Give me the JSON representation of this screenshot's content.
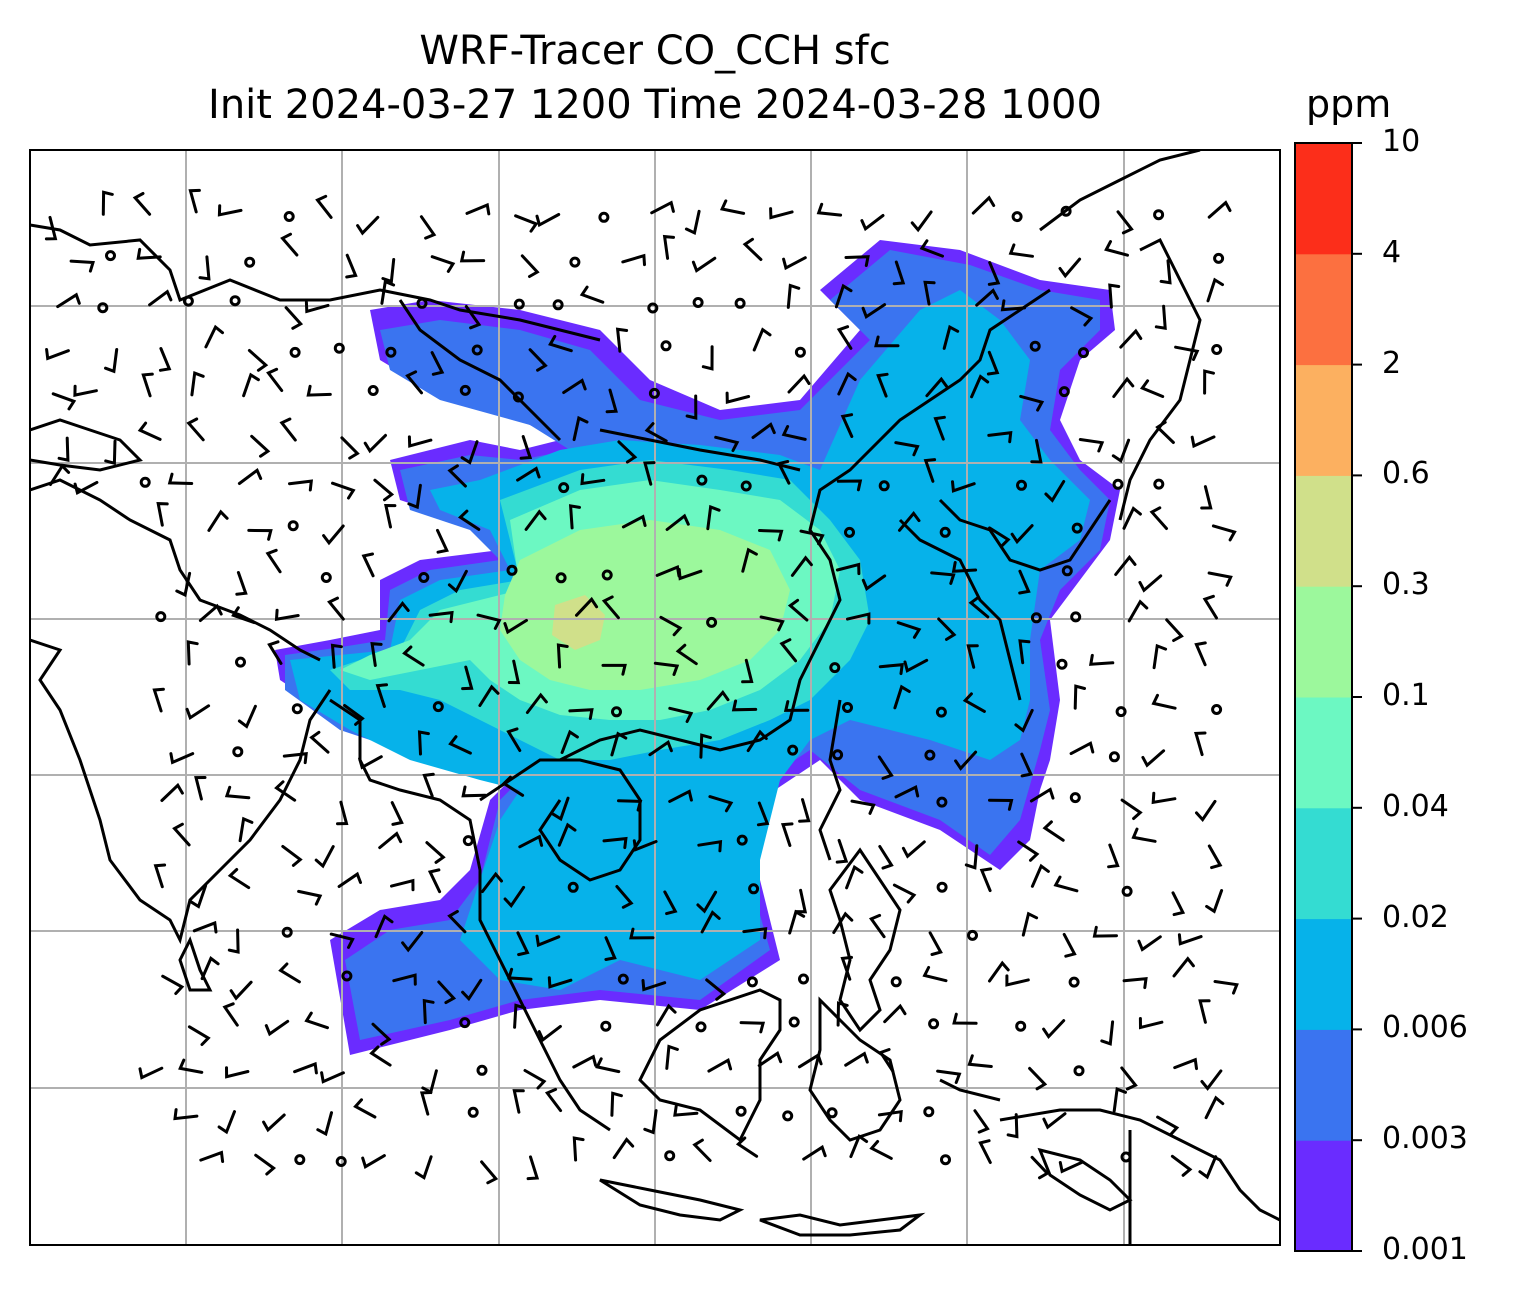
{
  "title": {
    "line1": "WRF-Tracer CO_CCH sfc",
    "line2": "Init 2024-03-27 1200 Time 2024-03-28 1000"
  },
  "colorbar": {
    "units": "ppm",
    "levels": [
      "0.001",
      "0.003",
      "0.006",
      "0.02",
      "0.04",
      "0.1",
      "0.3",
      "0.6",
      "2",
      "4",
      "10"
    ],
    "colors": [
      "#6a2cff",
      "#3a74f0",
      "#06b2ea",
      "#34dcd2",
      "#6cf8c2",
      "#9cf89c",
      "#d0e08a",
      "#fcb060",
      "#fc7040",
      "#fc2e1a"
    ]
  },
  "map": {
    "gridlines": true,
    "coastline_color": "#000000",
    "grid_color": "#b0b0b0"
  }
}
